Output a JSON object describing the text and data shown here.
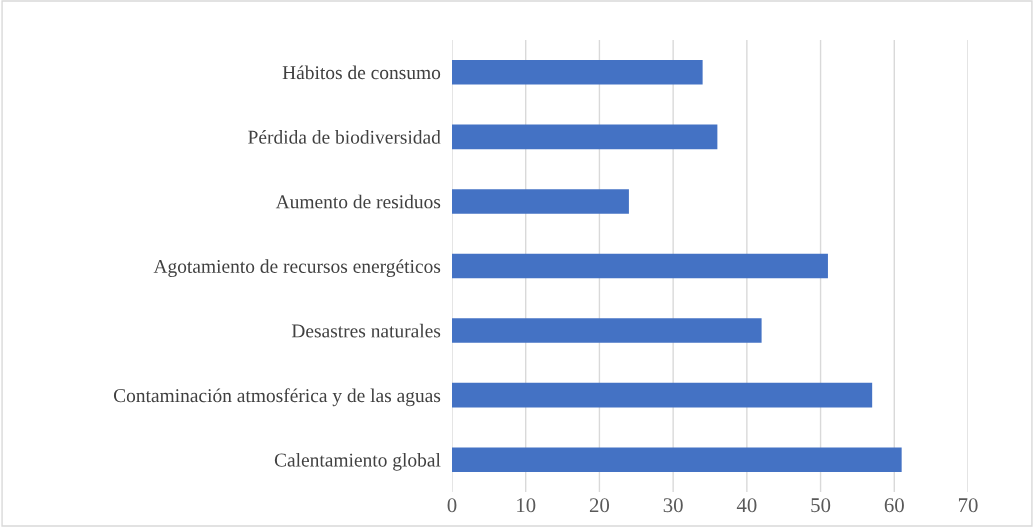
{
  "chart_data": {
    "type": "bar",
    "orientation": "horizontal",
    "categories": [
      "Hábitos de consumo",
      "Pérdida de biodiversidad",
      "Aumento de residuos",
      "Agotamiento de recursos energéticos",
      "Desastres naturales",
      "Contaminación atmosférica y de las aguas",
      "Calentamiento global"
    ],
    "values": [
      34,
      36,
      24,
      51,
      42,
      57,
      61
    ],
    "color": "#4472c4",
    "xlim": [
      0,
      70
    ],
    "xticks": [
      0,
      10,
      20,
      30,
      40,
      50,
      60,
      70
    ],
    "grid": "x",
    "legend": false
  }
}
